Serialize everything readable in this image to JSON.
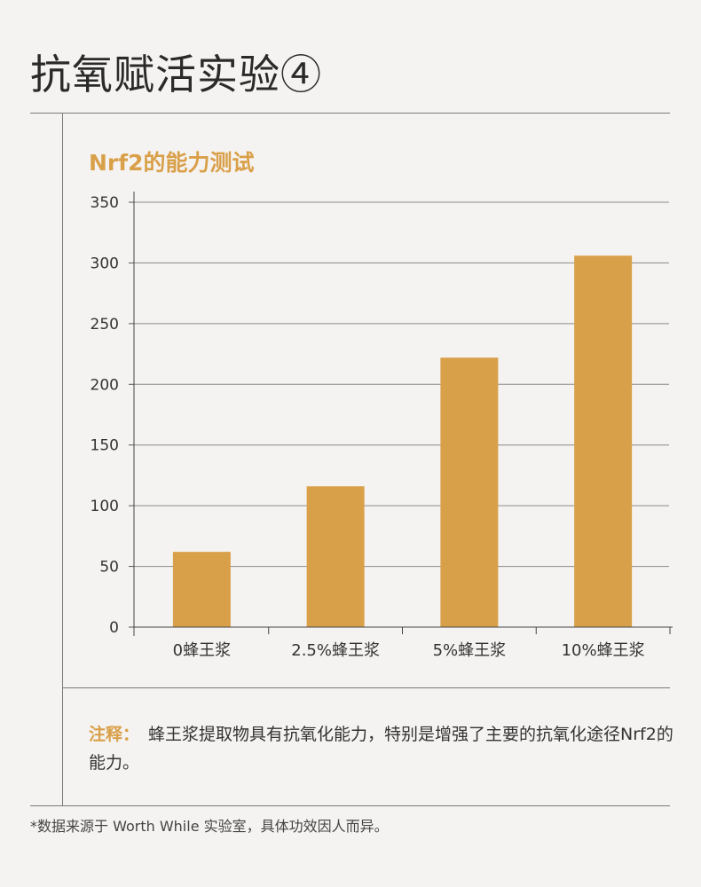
{
  "page": {
    "title": "抗氧赋活实验④",
    "note_label": "注释：",
    "note_text": "蜂王浆提取物具有抗氧化能力，特别是增强了主要的抗氧化途径Nrf2的能力。",
    "footnote": "*数据来源于 Worth While 实验室，具体功效因人而异。"
  },
  "colors": {
    "accent": "#d9a04a",
    "bar": "#d9a04a",
    "grid": "#8a8a8a",
    "background": "#f5f3f1"
  },
  "chart_data": {
    "type": "bar",
    "title": "Nrf2的能力测试",
    "categories": [
      "0蜂王浆",
      "2.5%蜂王浆",
      "5%蜂王浆",
      "10%蜂王浆"
    ],
    "values": [
      62,
      116,
      222,
      306
    ],
    "ylim": [
      0,
      350
    ],
    "yticks": [
      0,
      50,
      100,
      150,
      200,
      250,
      300,
      350
    ],
    "xlabel": "",
    "ylabel": "",
    "grid": true
  }
}
